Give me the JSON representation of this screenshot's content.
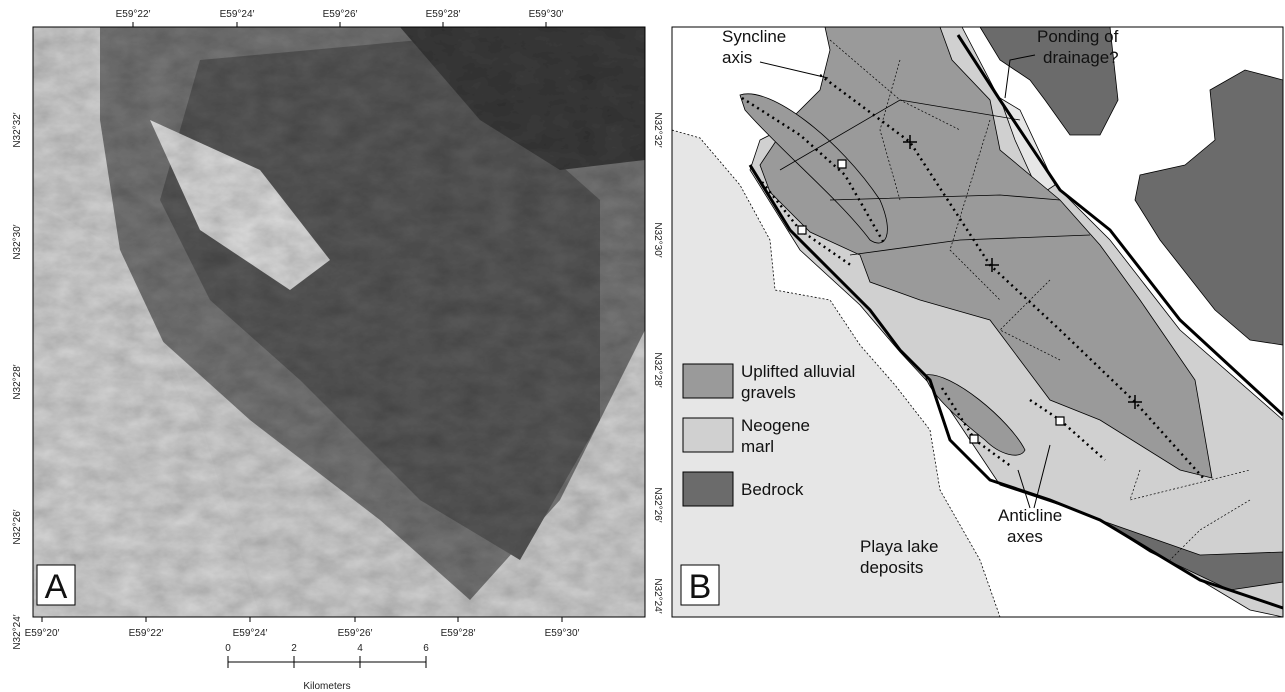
{
  "panel_a": {
    "label": "A",
    "top_ticks": [
      "E59°22′",
      "E59°24′",
      "E59°26′",
      "E59°28′",
      "E59°30′"
    ],
    "bottom_ticks": [
      "E59°20′",
      "E59°22′",
      "E59°24′",
      "E59°26′",
      "E59°28′",
      "E59°30′"
    ],
    "left_ticks": [
      "N32°32′",
      "N32°30′",
      "N32°28′",
      "N32°26′",
      "N32°24′"
    ],
    "right_ticks": [
      "N32°32′",
      "N32°30′",
      "N32°28′",
      "N32°26′",
      "N32°24′"
    ],
    "scale_bar": {
      "ticks": [
        0,
        2,
        4,
        6
      ],
      "unit": "Kilometers"
    }
  },
  "panel_b": {
    "label": "B",
    "annotations": {
      "syncline": [
        "Syncline",
        "axis"
      ],
      "ponding": [
        "Ponding of",
        "drainage?"
      ],
      "anticline": [
        "Anticline",
        "axes"
      ],
      "playa": [
        "Playa lake",
        "deposits"
      ]
    },
    "legend": [
      {
        "lines": [
          "Uplifted alluvial",
          "gravels"
        ],
        "color": "#9a9a9a"
      },
      {
        "lines": [
          "Neogene",
          "marl"
        ],
        "color": "#d0d0d0"
      },
      {
        "lines": [
          "Bedrock"
        ],
        "color": "#6b6b6b"
      }
    ]
  }
}
